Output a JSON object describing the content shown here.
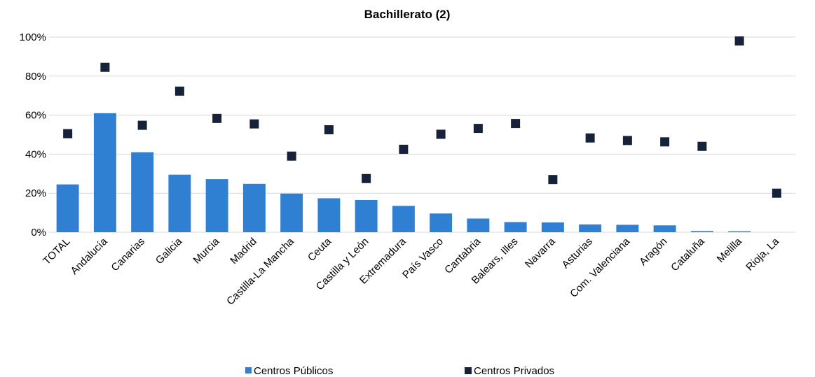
{
  "chart_data": {
    "type": "bar",
    "title": "Bachillerato (2)",
    "categories": [
      "TOTAL",
      "Andalucía",
      "Canarias",
      "Galicia",
      "Murcia",
      "Madrid",
      "Castilla-La Mancha",
      "Ceuta",
      "Castilla y León",
      "Extremadura",
      "País Vasco",
      "Cantabria",
      "Balears, Illes",
      "Navarra",
      "Asturias",
      "Com. Valenciana",
      "Aragón",
      "Cataluña",
      "Melilla",
      "Rioja, La"
    ],
    "series": [
      {
        "name": "Centros Públicos",
        "type": "bar",
        "color": "#2f80d3",
        "values": [
          24.5,
          61.0,
          41.0,
          29.5,
          27.2,
          24.8,
          19.8,
          17.4,
          16.5,
          13.5,
          9.6,
          7.0,
          5.2,
          5.0,
          4.0,
          3.8,
          3.5,
          0.6,
          0.5,
          0.0
        ]
      },
      {
        "name": "Centros Privados",
        "type": "scatter",
        "color": "#16213a",
        "values": [
          50.5,
          84.5,
          54.8,
          72.3,
          58.3,
          55.5,
          39.0,
          52.5,
          27.5,
          42.5,
          50.2,
          53.2,
          55.7,
          27.0,
          48.3,
          47.0,
          46.3,
          44.0,
          98.0,
          20.0
        ]
      }
    ],
    "ylim": [
      0,
      100
    ],
    "yticks": [
      0,
      20,
      40,
      60,
      80,
      100
    ],
    "ytick_format": "%",
    "grid": true,
    "legend": "bottom"
  }
}
